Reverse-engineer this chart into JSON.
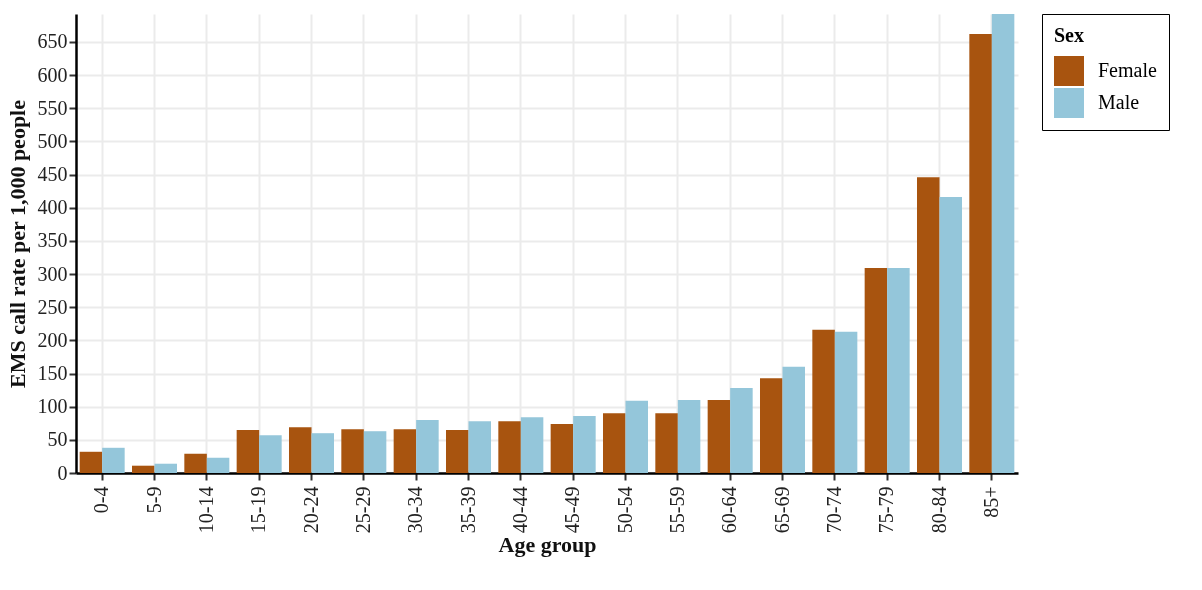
{
  "chart_data": {
    "type": "bar",
    "xlabel": "Age group",
    "ylabel": "EMS call rate per 1,000 people",
    "legend_title": "Sex",
    "legend": "right",
    "grid": true,
    "categories": [
      "0-4",
      "5-9",
      "10-14",
      "15-19",
      "20-24",
      "25-29",
      "30-34",
      "35-39",
      "40-44",
      "45-49",
      "50-54",
      "55-59",
      "60-64",
      "65-69",
      "70-74",
      "75-79",
      "80-84",
      "85+"
    ],
    "series": [
      {
        "name": "Female",
        "color": "#a8540f",
        "values": [
          32,
          11,
          29,
          65,
          69,
          66,
          66,
          65,
          78,
          74,
          90,
          90,
          110,
          143,
          216,
          309,
          446,
          662
        ]
      },
      {
        "name": "Male",
        "color": "#94c6da",
        "values": [
          38,
          14,
          23,
          57,
          60,
          63,
          80,
          78,
          84,
          86,
          109,
          110,
          128,
          160,
          213,
          309,
          416,
          692
        ]
      }
    ],
    "ylim": [
      0,
      692
    ],
    "yticks": [
      0,
      50,
      100,
      150,
      200,
      250,
      300,
      350,
      400,
      450,
      500,
      550,
      600,
      650
    ]
  }
}
